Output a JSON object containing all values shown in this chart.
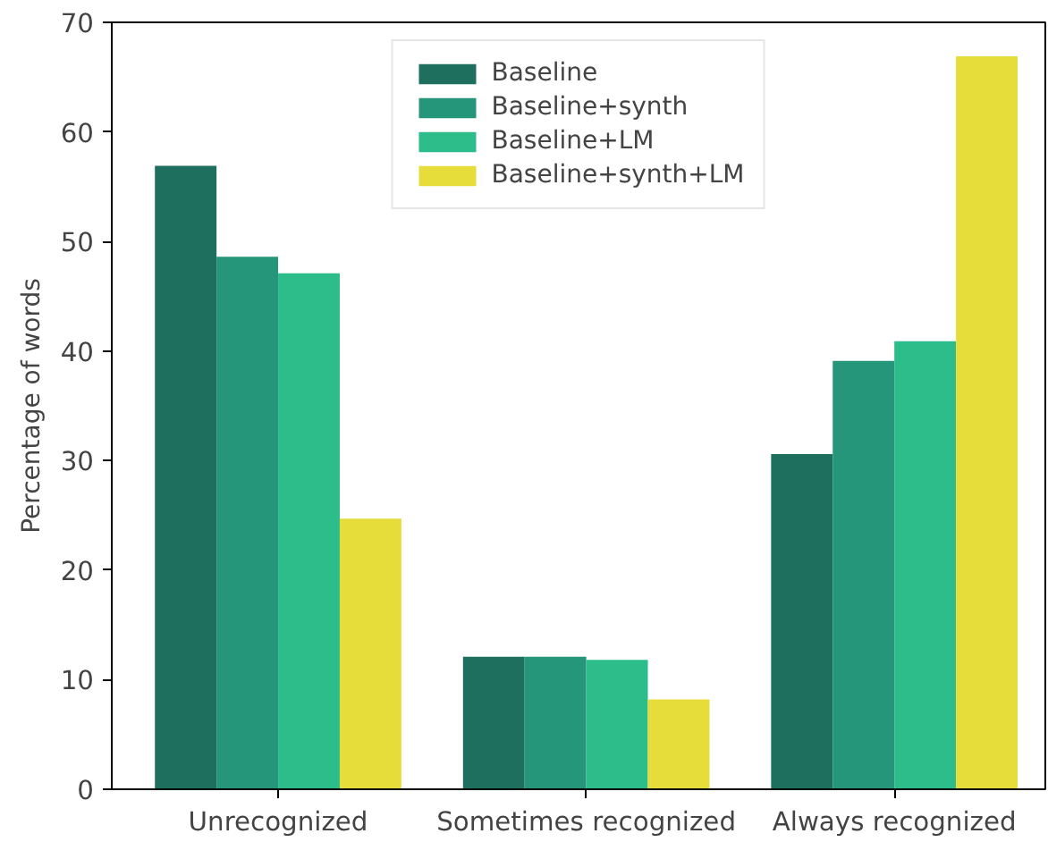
{
  "chart_data": {
    "type": "bar",
    "ylabel": "Percentage of words",
    "categories": [
      "Unrecognized",
      "Sometimes recognized",
      "Always recognized"
    ],
    "series": [
      {
        "name": "Baseline",
        "color": "#1f6f5f",
        "values": [
          56.9,
          12.1,
          30.6
        ]
      },
      {
        "name": "Baseline+synth",
        "color": "#25967a",
        "values": [
          48.6,
          12.1,
          39.1
        ]
      },
      {
        "name": "Baseline+LM",
        "color": "#2cbd8a",
        "values": [
          47.1,
          11.8,
          40.9
        ]
      },
      {
        "name": "Baseline+synth+LM",
        "color": "#e6dd3a",
        "values": [
          24.7,
          8.2,
          66.9
        ]
      }
    ],
    "ylim": [
      0,
      70
    ],
    "yticks": [
      0,
      10,
      20,
      30,
      40,
      50,
      60,
      70
    ],
    "grid": false,
    "legend": "top"
  }
}
